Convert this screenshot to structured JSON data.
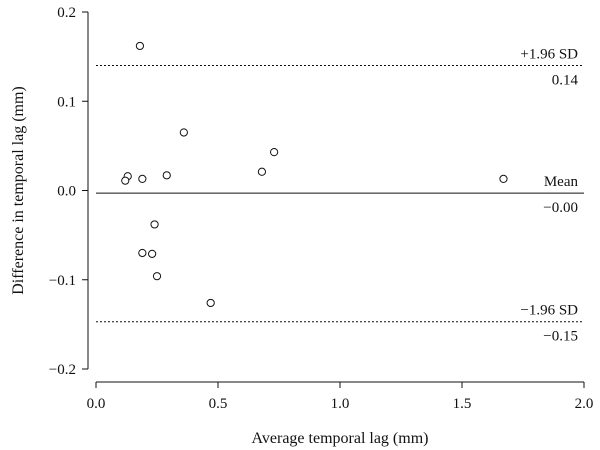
{
  "chart_data": {
    "type": "scatter",
    "title": "",
    "xlabel": "Average temporal lag (mm)",
    "ylabel": "Difference in temporal lag (mm)",
    "xlim": [
      0.0,
      2.0
    ],
    "ylim": [
      -0.2,
      0.2
    ],
    "x_ticks": [
      "0.0",
      "0.5",
      "1.0",
      "1.5",
      "2.0"
    ],
    "y_ticks": [
      "0.2",
      "0.1",
      "0.0",
      "−0.1",
      "−0.2"
    ],
    "grid": false,
    "points": [
      {
        "x": 0.18,
        "y": 0.162
      },
      {
        "x": 0.13,
        "y": 0.016
      },
      {
        "x": 0.12,
        "y": 0.011
      },
      {
        "x": 0.19,
        "y": 0.013
      },
      {
        "x": 0.29,
        "y": 0.017
      },
      {
        "x": 0.36,
        "y": 0.065
      },
      {
        "x": 0.24,
        "y": -0.038
      },
      {
        "x": 0.19,
        "y": -0.07
      },
      {
        "x": 0.23,
        "y": -0.071
      },
      {
        "x": 0.25,
        "y": -0.096
      },
      {
        "x": 0.47,
        "y": -0.126
      },
      {
        "x": 0.68,
        "y": 0.021
      },
      {
        "x": 0.73,
        "y": 0.043
      },
      {
        "x": 1.67,
        "y": 0.013
      }
    ],
    "reference_lines": [
      {
        "name": "+1.96 SD",
        "value": 0.14,
        "value_label": "0.14",
        "style": "dotted"
      },
      {
        "name": "Mean",
        "value": -0.003,
        "value_label": "−0.00",
        "style": "solid"
      },
      {
        "name": "−1.96 SD",
        "value": -0.147,
        "value_label": "−0.15",
        "style": "dotted"
      }
    ]
  }
}
